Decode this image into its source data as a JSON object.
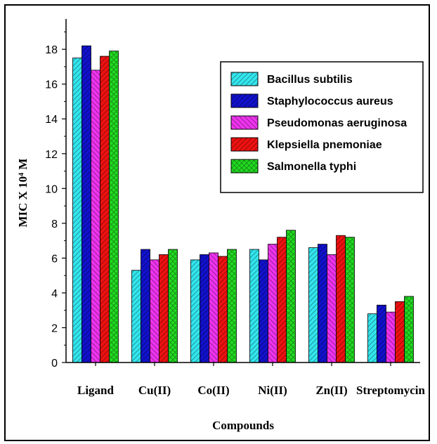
{
  "chart_data": {
    "type": "bar",
    "title": "",
    "xlabel": "Compounds",
    "ylabel": "MIC X 10⁴ M",
    "ylim": [
      0,
      19.5
    ],
    "yticks": [
      0,
      2,
      4,
      6,
      8,
      10,
      12,
      14,
      16,
      18
    ],
    "categories": [
      "Ligand",
      "Cu(II)",
      "Co(II)",
      "Ni(II)",
      "Zn(II)",
      "Streptomycin"
    ],
    "legend_position": "top-right",
    "series": [
      {
        "name": "Bacillus subtilis",
        "color": "#33e6ee",
        "pattern": "diag-right",
        "values": [
          17.5,
          5.3,
          5.9,
          6.5,
          6.6,
          2.8
        ]
      },
      {
        "name": "Staphylococcus aureus",
        "color": "#1111cc",
        "pattern": "diag-right",
        "values": [
          18.2,
          6.5,
          6.2,
          5.9,
          6.8,
          3.3
        ]
      },
      {
        "name": "Pseudomonas aeruginosa",
        "color": "#ee33ee",
        "pattern": "diag-left",
        "values": [
          16.8,
          5.9,
          6.3,
          6.8,
          6.2,
          2.9
        ]
      },
      {
        "name": "Klepsiella pnemoniae",
        "color": "#ee1111",
        "pattern": "diag-right",
        "values": [
          17.6,
          6.2,
          6.1,
          7.2,
          7.3,
          3.5
        ]
      },
      {
        "name": "Salmonella typhi",
        "color": "#22dd22",
        "pattern": "cross",
        "values": [
          17.9,
          6.5,
          6.5,
          7.6,
          7.2,
          3.8
        ]
      }
    ]
  }
}
